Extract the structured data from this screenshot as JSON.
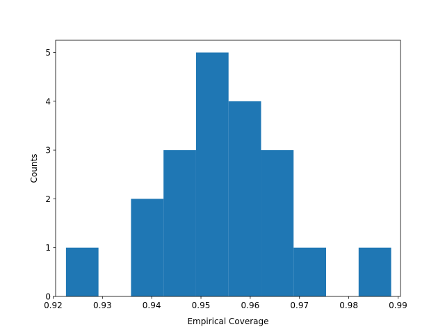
{
  "chart_data": {
    "type": "bar",
    "title": "",
    "xlabel": "Empirical Coverage",
    "ylabel": "Counts",
    "xlim": [
      0.9205,
      0.9905
    ],
    "ylim": [
      0,
      5.25
    ],
    "grid": false,
    "legend": "none",
    "bins": [
      {
        "x0": 0.9226,
        "x1": 0.9292,
        "count": 1
      },
      {
        "x0": 0.9292,
        "x1": 0.9358,
        "count": 0
      },
      {
        "x0": 0.9358,
        "x1": 0.9424,
        "count": 2
      },
      {
        "x0": 0.9424,
        "x1": 0.949,
        "count": 3
      },
      {
        "x0": 0.949,
        "x1": 0.9556,
        "count": 5
      },
      {
        "x0": 0.9556,
        "x1": 0.9622,
        "count": 4
      },
      {
        "x0": 0.9622,
        "x1": 0.9688,
        "count": 3
      },
      {
        "x0": 0.9688,
        "x1": 0.9754,
        "count": 1
      },
      {
        "x0": 0.9754,
        "x1": 0.982,
        "count": 0
      },
      {
        "x0": 0.982,
        "x1": 0.9886,
        "count": 1
      }
    ],
    "xticks": [
      {
        "value": 0.92,
        "label": "0.92"
      },
      {
        "value": 0.93,
        "label": "0.93"
      },
      {
        "value": 0.94,
        "label": "0.94"
      },
      {
        "value": 0.95,
        "label": "0.95"
      },
      {
        "value": 0.96,
        "label": "0.96"
      },
      {
        "value": 0.97,
        "label": "0.97"
      },
      {
        "value": 0.98,
        "label": "0.98"
      },
      {
        "value": 0.99,
        "label": "0.99"
      }
    ],
    "yticks": [
      {
        "value": 0,
        "label": "0"
      },
      {
        "value": 1,
        "label": "1"
      },
      {
        "value": 2,
        "label": "2"
      },
      {
        "value": 3,
        "label": "3"
      },
      {
        "value": 4,
        "label": "4"
      },
      {
        "value": 5,
        "label": "5"
      }
    ],
    "bar_color": "#1f77b4"
  }
}
